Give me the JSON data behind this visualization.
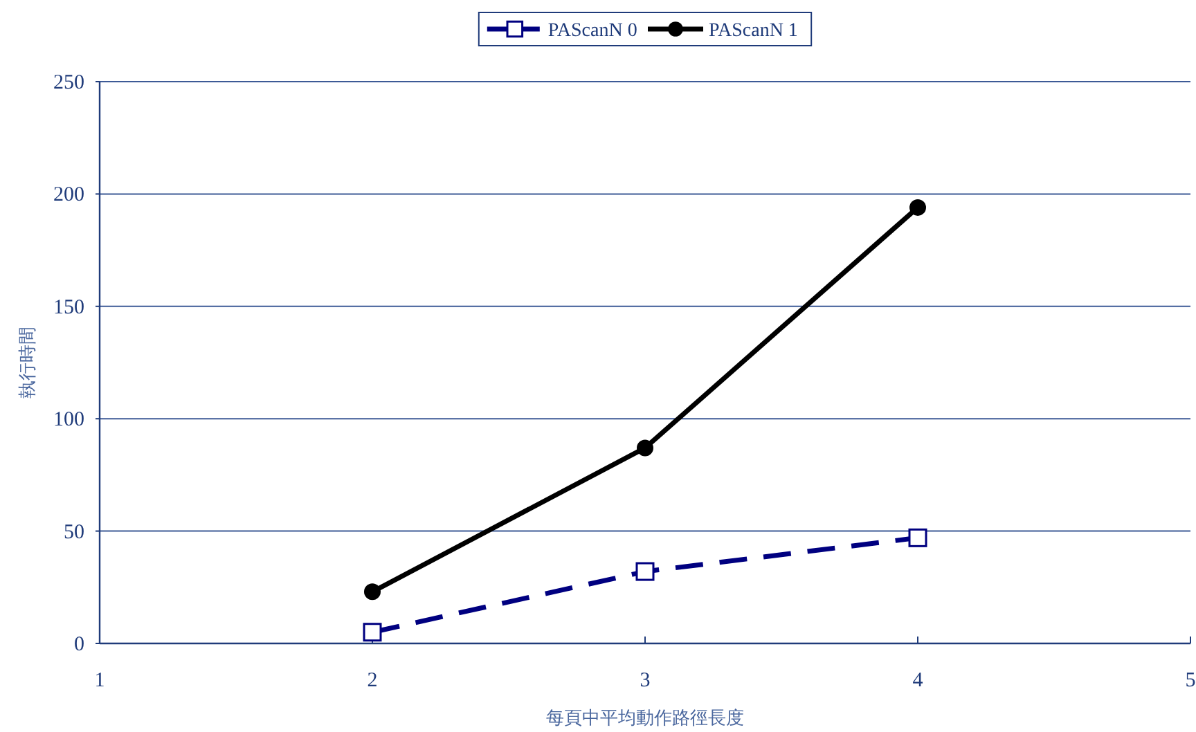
{
  "chart_data": {
    "type": "line",
    "xlabel": "每頁中平均動作路徑長度",
    "ylabel": "執行時間",
    "x": [
      2,
      3,
      4
    ],
    "series": [
      {
        "name": "PAScanN 0",
        "color": "#000080",
        "values": [
          5,
          32,
          47
        ],
        "marker": "square",
        "line_style": "dashed"
      },
      {
        "name": "PAScanN 1",
        "color": "#000000",
        "values": [
          23,
          87,
          194
        ],
        "marker": "circle",
        "line_style": "solid"
      }
    ],
    "xlim": [
      1,
      5
    ],
    "xticks": [
      1,
      2,
      3,
      4,
      5
    ],
    "ylim": [
      0,
      250
    ],
    "yticks": [
      0,
      50,
      100,
      150,
      200,
      250
    ],
    "grid": "y",
    "legend": "top"
  }
}
